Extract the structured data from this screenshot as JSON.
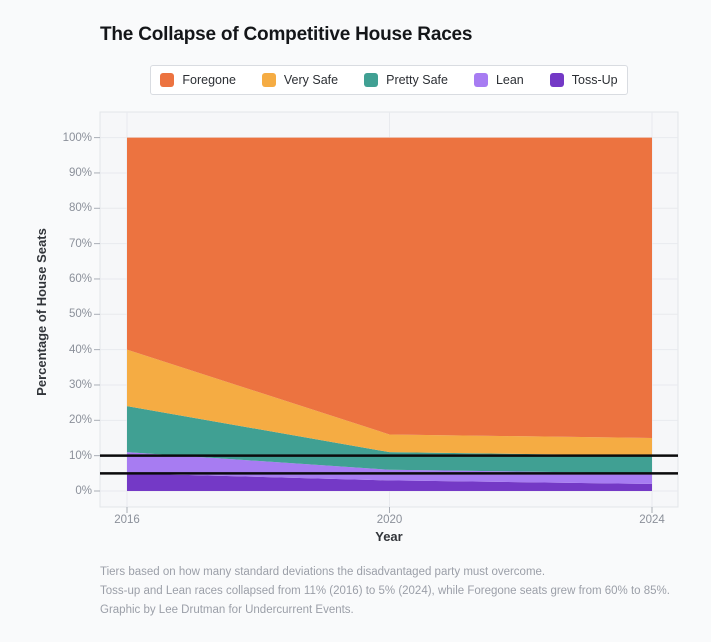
{
  "title": "The Collapse of Competitive House Races",
  "legend": {
    "items": [
      {
        "label": "Foregone",
        "color": "#ec7340"
      },
      {
        "label": "Very Safe",
        "color": "#f5ac43"
      },
      {
        "label": "Pretty Safe",
        "color": "#40a093"
      },
      {
        "label": "Lean",
        "color": "#a77cf2"
      },
      {
        "label": "Toss-Up",
        "color": "#7439c6"
      }
    ]
  },
  "chart_data": {
    "type": "area",
    "stacked": true,
    "title": "The Collapse of Competitive House Races",
    "xlabel": "Year",
    "ylabel": "Percentage of House Seats",
    "x": [
      2016,
      2020,
      2024
    ],
    "x_tick_labels": [
      "2016",
      "2020",
      "2024"
    ],
    "y_ticks": [
      {
        "value": 0,
        "label": "0%"
      },
      {
        "value": 10,
        "label": "10%"
      },
      {
        "value": 20,
        "label": "20%"
      },
      {
        "value": 30,
        "label": "30%"
      },
      {
        "value": 40,
        "label": "40%"
      },
      {
        "value": 50,
        "label": "50%"
      },
      {
        "value": 60,
        "label": "60%"
      },
      {
        "value": 70,
        "label": "70%"
      },
      {
        "value": 80,
        "label": "80%"
      },
      {
        "value": 90,
        "label": "90%"
      },
      {
        "value": 100,
        "label": "100%"
      }
    ],
    "ylim": [
      0,
      100
    ],
    "grid": true,
    "legend_position": "top",
    "reference_lines": [
      5,
      10
    ],
    "series": [
      {
        "name": "Toss-Up",
        "color": "#7439c6",
        "values": [
          5,
          3,
          2
        ]
      },
      {
        "name": "Lean",
        "color": "#a77cf2",
        "values": [
          6,
          3,
          3
        ]
      },
      {
        "name": "Pretty Safe",
        "color": "#40a093",
        "values": [
          13,
          5,
          5
        ]
      },
      {
        "name": "Very Safe",
        "color": "#f5ac43",
        "values": [
          16,
          5,
          5
        ]
      },
      {
        "name": "Foregone",
        "color": "#ec7340",
        "values": [
          60,
          84,
          85
        ]
      }
    ]
  },
  "colors": {
    "page_bg": "#f9fafb",
    "panel_bg": "#f6f7f9",
    "gridline": "#e8eaee",
    "panel_border": "#e2e5e9",
    "tick": "#a9aeb6",
    "reference_line": "#0b0b0c"
  },
  "captions": [
    "Tiers based on how many standard deviations the disadvantaged party must overcome.",
    "Toss-up and Lean races collapsed from 11% (2016) to 5% (2024), while Foregone seats grew from 60% to 85%.",
    "Graphic by Lee Drutman for Undercurrent Events."
  ]
}
